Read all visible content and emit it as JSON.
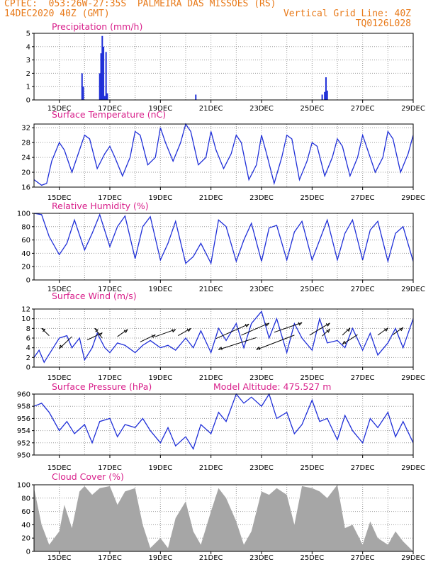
{
  "header": {
    "line1_left": "CPTEC:  053:26W-27:35S  PALMEIRA DAS MISSOES (RS)",
    "line2_left": "14DEC2020 40Z (GMT)",
    "line2_right": "Vertical Grid Line: 40Z",
    "line3_right": "TQ0126L028"
  },
  "colors": {
    "header": "#e87a1a",
    "title": "#d81e8a",
    "series": "#1f2fd8",
    "cloud": "#a6a6a6",
    "grid": "#9a9a9a"
  },
  "x_axis": {
    "start_day": 14,
    "end_day": 29,
    "tick_labels": [
      "15DEC",
      "17DEC",
      "19DEC",
      "21DEC",
      "23DEC",
      "25DEC",
      "27DEC",
      "29DEC"
    ]
  },
  "chart_data": [
    {
      "type": "bar",
      "title": "Precipitation  (mm/h)",
      "ylim": [
        0,
        5
      ],
      "yticks": [
        0,
        1,
        2,
        3,
        4,
        5
      ],
      "x": [
        15.9,
        15.95,
        16.6,
        16.65,
        16.7,
        16.75,
        16.8,
        16.85,
        16.9,
        20.4,
        25.4,
        25.5,
        25.55,
        25.6
      ],
      "values": [
        2.0,
        1.0,
        2.0,
        3.5,
        4.8,
        4.0,
        0.3,
        3.6,
        0.5,
        0.4,
        0.4,
        0.6,
        1.7,
        0.7
      ],
      "grid": true
    },
    {
      "type": "line",
      "title": "Surface Temperature (nC)",
      "ylim": [
        16,
        33
      ],
      "yticks": [
        16,
        20,
        24,
        28,
        32
      ],
      "x": [
        14,
        14.3,
        14.5,
        14.7,
        15,
        15.2,
        15.5,
        15.8,
        16,
        16.2,
        16.5,
        16.8,
        17,
        17.2,
        17.5,
        17.8,
        18,
        18.2,
        18.5,
        18.8,
        19,
        19.2,
        19.5,
        19.8,
        20,
        20.2,
        20.5,
        20.8,
        21,
        21.2,
        21.5,
        21.8,
        22,
        22.2,
        22.5,
        22.8,
        23,
        23.2,
        23.5,
        23.8,
        24,
        24.2,
        24.5,
        24.8,
        25,
        25.2,
        25.5,
        25.8,
        26,
        26.2,
        26.5,
        26.8,
        27,
        27.2,
        27.5,
        27.8,
        28,
        28.2,
        28.5,
        28.8,
        29
      ],
      "values": [
        18,
        16.5,
        17,
        23,
        28,
        26,
        20,
        26,
        30,
        29,
        21,
        25,
        27,
        24,
        19,
        24,
        31,
        30,
        22,
        24,
        32,
        28,
        23,
        28,
        33,
        31,
        22,
        24,
        31,
        26,
        21,
        25,
        30,
        28,
        18,
        22,
        30,
        25,
        17,
        24,
        30,
        29,
        18,
        23,
        28,
        27,
        19,
        24,
        29,
        27,
        19,
        24,
        30,
        26,
        20,
        24,
        31,
        29,
        20,
        25,
        30
      ],
      "grid": true
    },
    {
      "type": "line",
      "title": "Relative Humidity  (%)",
      "ylim": [
        0,
        100
      ],
      "yticks": [
        0,
        20,
        40,
        60,
        80,
        100
      ],
      "x": [
        14,
        14.3,
        14.6,
        15,
        15.3,
        15.6,
        16,
        16.3,
        16.6,
        17,
        17.3,
        17.6,
        18,
        18.3,
        18.6,
        19,
        19.3,
        19.6,
        20,
        20.3,
        20.6,
        21,
        21.3,
        21.6,
        22,
        22.3,
        22.6,
        23,
        23.3,
        23.6,
        24,
        24.3,
        24.6,
        25,
        25.3,
        25.6,
        26,
        26.3,
        26.6,
        27,
        27.3,
        27.6,
        28,
        28.3,
        28.6,
        29
      ],
      "values": [
        100,
        98,
        65,
        38,
        55,
        90,
        45,
        70,
        98,
        50,
        80,
        96,
        32,
        80,
        95,
        30,
        55,
        88,
        25,
        35,
        55,
        25,
        90,
        80,
        28,
        60,
        85,
        28,
        78,
        82,
        30,
        72,
        88,
        30,
        60,
        90,
        30,
        70,
        90,
        30,
        75,
        88,
        28,
        70,
        80,
        28
      ],
      "grid": true
    },
    {
      "type": "line",
      "title": "Surface  Wind  (m/s)",
      "ylim": [
        0,
        12
      ],
      "yticks": [
        0,
        2,
        4,
        6,
        8,
        10,
        12
      ],
      "x": [
        14,
        14.2,
        14.4,
        14.7,
        15,
        15.3,
        15.5,
        15.8,
        16,
        16.3,
        16.5,
        16.8,
        17,
        17.3,
        17.6,
        18,
        18.3,
        18.6,
        19,
        19.3,
        19.6,
        20,
        20.3,
        20.6,
        21,
        21.3,
        21.6,
        22,
        22.3,
        22.6,
        23,
        23.3,
        23.6,
        24,
        24.3,
        24.6,
        25,
        25.3,
        25.6,
        26,
        26.3,
        26.6,
        27,
        27.3,
        27.6,
        28,
        28.3,
        28.6,
        29
      ],
      "values": [
        2,
        3.5,
        1,
        3.5,
        6,
        6.5,
        4,
        6,
        1.5,
        4,
        7,
        4,
        3,
        5,
        4.5,
        3,
        4.5,
        5.5,
        4,
        4.5,
        3.5,
        6,
        4,
        7.5,
        3,
        8,
        5.5,
        9,
        4,
        9,
        11.5,
        6,
        10,
        3,
        9,
        6,
        3.5,
        10,
        5,
        5.5,
        4,
        8,
        3.5,
        7,
        2.5,
        5,
        8,
        4,
        10
      ],
      "arrows": [
        [
          14.6,
          6.5,
          -0.3,
          1.5
        ],
        [
          15.5,
          6.3,
          -0.5,
          -2.5
        ],
        [
          16.1,
          5.6,
          0.6,
          1.5
        ],
        [
          16.7,
          6,
          -0.3,
          2
        ],
        [
          17.3,
          6.3,
          0.4,
          1.5
        ],
        [
          18.2,
          5.2,
          0.6,
          1.5
        ],
        [
          18.8,
          6.3,
          0.8,
          1.5
        ],
        [
          19.7,
          6.5,
          0.5,
          1.5
        ],
        [
          21.2,
          5.9,
          1.3,
          3
        ],
        [
          22.2,
          6.6,
          1.1,
          2.5
        ],
        [
          22.8,
          6.1,
          -1.5,
          -2.5
        ],
        [
          23.5,
          7.2,
          1.1,
          2
        ],
        [
          24.3,
          6.6,
          -1.5,
          -3
        ],
        [
          24.9,
          6.6,
          0.8,
          2.5
        ],
        [
          25.4,
          6.4,
          0.3,
          1.5
        ],
        [
          26.2,
          6.6,
          0.3,
          1.5
        ],
        [
          26.8,
          6.7,
          -0.6,
          -2
        ],
        [
          27.6,
          6.6,
          0.4,
          1.5
        ],
        [
          28.2,
          6.7,
          0.4,
          1.5
        ]
      ],
      "grid": true
    },
    {
      "type": "line",
      "title": "Surface  Pressure  (hPa)",
      "annotation": "Model Altitude: 475.527  m",
      "ylim": [
        950,
        960
      ],
      "yticks": [
        950,
        952,
        954,
        956,
        958,
        960
      ],
      "x": [
        14,
        14.3,
        14.6,
        15,
        15.3,
        15.6,
        16,
        16.3,
        16.6,
        17,
        17.3,
        17.6,
        18,
        18.3,
        18.6,
        19,
        19.3,
        19.6,
        20,
        20.3,
        20.6,
        21,
        21.3,
        21.6,
        22,
        22.3,
        22.6,
        23,
        23.3,
        23.6,
        24,
        24.3,
        24.6,
        25,
        25.3,
        25.6,
        26,
        26.3,
        26.6,
        27,
        27.3,
        27.6,
        28,
        28.3,
        28.6,
        29
      ],
      "values": [
        958,
        958.5,
        957,
        954,
        955.5,
        953.5,
        955,
        952,
        955.5,
        956,
        953,
        955,
        954.5,
        956,
        954,
        952,
        954.5,
        951.5,
        953,
        951,
        955,
        953.5,
        957,
        955.5,
        960,
        958.5,
        959.5,
        958,
        960,
        956,
        957,
        953.5,
        955,
        959,
        955.5,
        956,
        952.5,
        956.5,
        954,
        952,
        956,
        954.5,
        957,
        953,
        955.5,
        952
      ]
    },
    {
      "type": "area",
      "title": "Cloud Cover  (%)",
      "ylim": [
        0,
        100
      ],
      "yticks": [
        0,
        20,
        40,
        60,
        80,
        100
      ],
      "x": [
        14,
        14.3,
        14.6,
        15,
        15.2,
        15.5,
        15.8,
        16,
        16.3,
        16.6,
        17,
        17.3,
        17.6,
        18,
        18.3,
        18.6,
        19,
        19.3,
        19.6,
        20,
        20.3,
        20.6,
        21,
        21.3,
        21.6,
        22,
        22.3,
        22.6,
        23,
        23.3,
        23.6,
        24,
        24.3,
        24.6,
        25,
        25.3,
        25.6,
        26,
        26.3,
        26.6,
        27,
        27.3,
        27.6,
        28,
        28.3,
        28.6,
        29
      ],
      "values": [
        95,
        40,
        10,
        30,
        70,
        35,
        90,
        98,
        85,
        95,
        98,
        70,
        90,
        95,
        40,
        5,
        20,
        5,
        50,
        75,
        30,
        10,
        60,
        95,
        80,
        45,
        10,
        30,
        90,
        85,
        95,
        85,
        40,
        98,
        95,
        90,
        80,
        100,
        35,
        40,
        10,
        45,
        20,
        10,
        30,
        15,
        0
      ]
    }
  ]
}
